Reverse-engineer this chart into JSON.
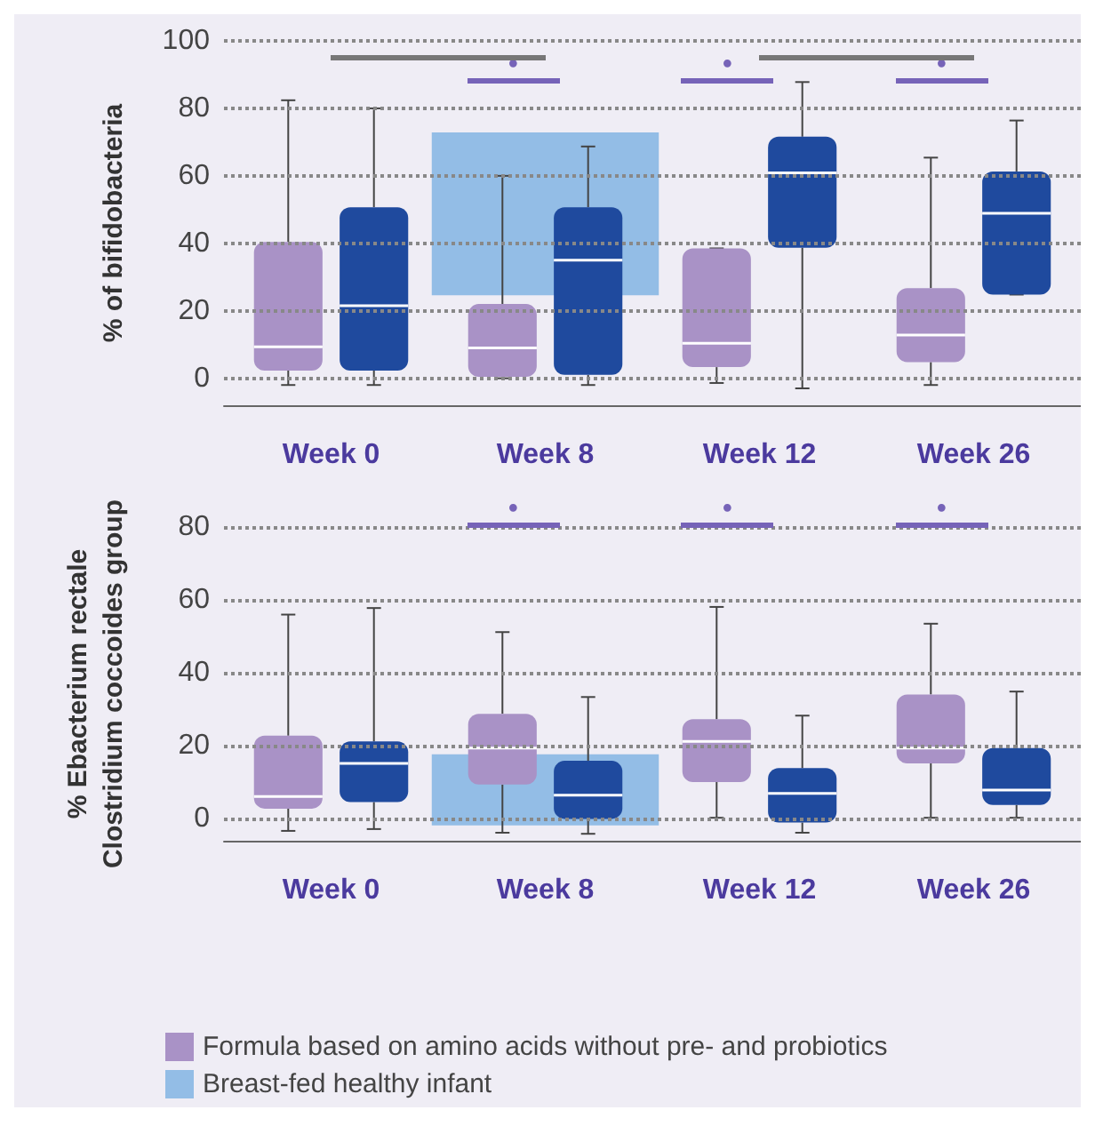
{
  "chart_data": [
    {
      "type": "box",
      "ylabel": "% of bifidobacteria",
      "categories": [
        "Week 0",
        "Week 8",
        "Week 12",
        "Week 26"
      ],
      "ylim": [
        -8,
        100
      ],
      "yticks": [
        0,
        20,
        40,
        60,
        80,
        100
      ],
      "grid": "y",
      "series": [
        {
          "color": "#a992c6",
          "boxes": [
            {
              "low": -2,
              "q1": 2.3,
              "median": 9.3,
              "q3": 40.4,
              "high": 82.4
            },
            {
              "low": 0,
              "q1": 0.4,
              "median": 9,
              "q3": 22,
              "high": 60
            },
            {
              "low": -1.4,
              "q1": 3.3,
              "median": 10.4,
              "q3": 38.5,
              "high": 38.5
            },
            {
              "low": -2,
              "q1": 4.8,
              "median": 12.8,
              "q3": 26.7,
              "high": 65.4
            }
          ]
        },
        {
          "color": "#1f4a9e",
          "boxes": [
            {
              "low": -2,
              "q1": 2.3,
              "median": 21.5,
              "q3": 50.7,
              "high": 80
            },
            {
              "low": -2,
              "q1": 1,
              "median": 35,
              "q3": 50.7,
              "high": 68.7
            },
            {
              "low": -3,
              "q1": 38.7,
              "median": 60.9,
              "q3": 71.6,
              "high": 87.8
            },
            {
              "low": 24.8,
              "q1": 24.8,
              "median": 48.9,
              "q3": 61.3,
              "high": 76.4
            }
          ]
        },
        {
          "type": "bar",
          "color": "#93bde6",
          "values": [
            null,
            48.3,
            null,
            null
          ],
          "base": [
            null,
            24.6,
            null,
            null
          ]
        }
      ],
      "annotations": [
        "•",
        "•",
        "•"
      ]
    },
    {
      "type": "box",
      "ylabel": "% Ebacterium rectale\nClostridium coccoides group",
      "categories": [
        "Week 0",
        "Week 8",
        "Week 12",
        "Week 26"
      ],
      "ylim": [
        -6,
        80
      ],
      "yticks": [
        0,
        20,
        40,
        60,
        80
      ],
      "grid": "y",
      "legend": "bottom",
      "series": [
        {
          "name": "Formula based on amino acids without pre- and probiotics",
          "color": "#a992c6",
          "boxes": [
            {
              "low": -3.3,
              "q1": 2.8,
              "median": 6.1,
              "q3": 22.8,
              "high": 56
            },
            {
              "low": -3.8,
              "q1": 9.4,
              "median": 19.4,
              "q3": 28.8,
              "high": 51.2
            },
            {
              "low": 0.3,
              "q1": 10.1,
              "median": 21.2,
              "q3": 27.3,
              "high": 58.1
            },
            {
              "low": 0.3,
              "q1": 15.2,
              "median": 19.4,
              "q3": 34.1,
              "high": 53.5
            }
          ]
        },
        {
          "color": "#1f4a9e",
          "boxes": [
            {
              "low": -2.8,
              "q1": 4.6,
              "median": 15.2,
              "q3": 21.2,
              "high": 57.8
            },
            {
              "low": -4.1,
              "q1": 0,
              "median": 6.5,
              "q3": 15.9,
              "high": 33.4
            },
            {
              "low": -3.8,
              "q1": -1,
              "median": 7,
              "q3": 13.9,
              "high": 28.3
            },
            {
              "low": 0.3,
              "q1": 3.8,
              "median": 7.9,
              "q3": 19.4,
              "high": 34.9
            }
          ]
        },
        {
          "name": "Breast-fed healthy infant",
          "type": "bar",
          "color": "#93bde6",
          "values": [
            null,
            19.5,
            null,
            null
          ],
          "base": [
            null,
            -1.8,
            null,
            null
          ]
        }
      ],
      "annotations": [
        "•",
        "•",
        "•"
      ]
    }
  ]
}
